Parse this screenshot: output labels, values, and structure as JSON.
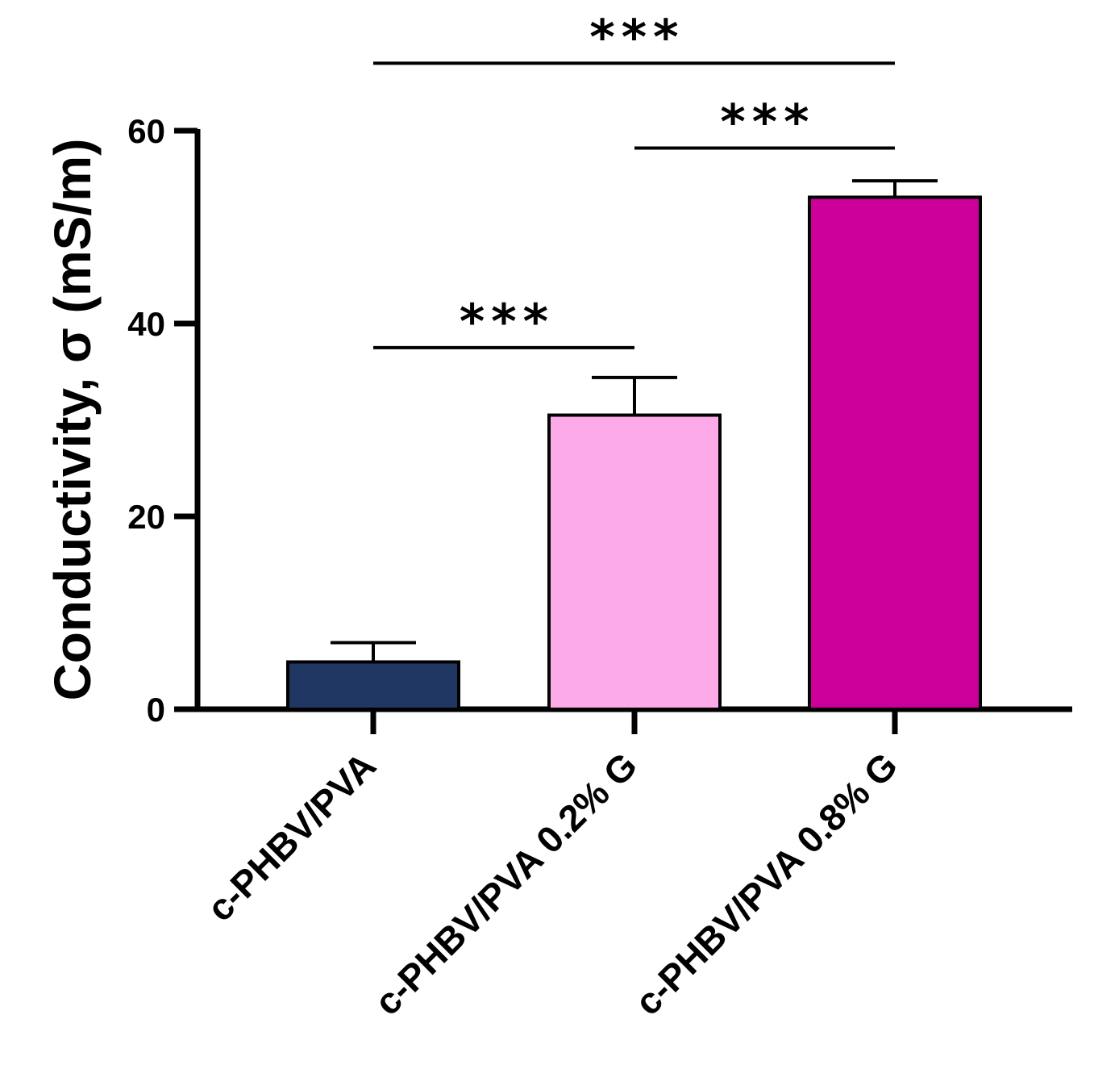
{
  "chart_data": {
    "type": "bar",
    "title": "",
    "xlabel": "",
    "ylabel": "Conductivity, σ (mS/m)",
    "ylim": [
      0,
      60
    ],
    "yticks": [
      0,
      20,
      40,
      60
    ],
    "categories": [
      "c-PHBV/PVA",
      "c-PHBV/PVA 0.2% G",
      "c-PHBV/PVA 0.8% G"
    ],
    "values": [
      4.9,
      30.5,
      53.1
    ],
    "errors": [
      2.0,
      3.9,
      1.7
    ],
    "colors": [
      "#213763",
      "#fcaae8",
      "#cc0099"
    ],
    "significance": [
      {
        "from": 0,
        "to": 1,
        "level": 37.5,
        "label": "***"
      },
      {
        "from": 1,
        "to": 2,
        "level": 58.2,
        "label": "***"
      },
      {
        "from": 0,
        "to": 2,
        "level": 67.0,
        "label": "***"
      }
    ]
  }
}
